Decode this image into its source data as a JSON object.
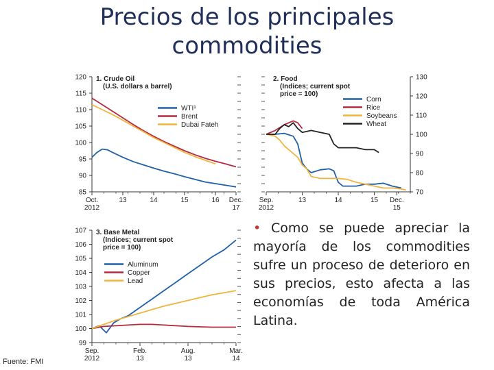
{
  "slide": {
    "title_line1": "Precios de los principales",
    "title_line2": "commodities",
    "bullet_symbol": "•",
    "bullet_text": "Como se puede apreciar la mayoría de los commodities sufre un proceso de deterioro en sus precios, esto afecta a las economías de toda América Latina.",
    "source": "Fuente: FMI"
  },
  "chart_data": [
    {
      "type": "line",
      "title": "1. Crude Oil",
      "subtitle": "(U.S. dollars a barrel)",
      "ylim": [
        85,
        120
      ],
      "yticks": [
        85,
        90,
        95,
        100,
        105,
        110,
        115,
        120
      ],
      "xlim": [
        0,
        14
      ],
      "xticks": [
        {
          "x": 0,
          "label1": "Oct.",
          "label2": "2012"
        },
        {
          "x": 3,
          "label1": "13",
          "label2": ""
        },
        {
          "x": 6,
          "label1": "14",
          "label2": ""
        },
        {
          "x": 9,
          "label1": "15",
          "label2": ""
        },
        {
          "x": 12,
          "label1": "16",
          "label2": ""
        },
        {
          "x": 14,
          "label1": "Dec.",
          "label2": "17"
        }
      ],
      "legend_position": "top-right",
      "series": [
        {
          "name": "WTI¹",
          "color": "#1f5fa8",
          "x": [
            0,
            0.5,
            1,
            1.5,
            2,
            3,
            4,
            5,
            6,
            7,
            8,
            9,
            10,
            11,
            12,
            13,
            14
          ],
          "y": [
            95.5,
            97,
            98,
            97.8,
            97,
            95.5,
            94.2,
            93.2,
            92.2,
            91.3,
            90.5,
            89.6,
            88.8,
            88,
            87.5,
            87,
            86.5
          ]
        },
        {
          "name": "Brent",
          "color": "#b5283e",
          "x": [
            0,
            1,
            2,
            3,
            4,
            5,
            6,
            7,
            8,
            9,
            10,
            11,
            12,
            13,
            14
          ],
          "y": [
            113.5,
            111.5,
            109.5,
            107.5,
            105.5,
            103.6,
            101.9,
            100.3,
            98.9,
            97.5,
            96.3,
            95.2,
            94.3,
            93.5,
            92.6
          ]
        },
        {
          "name": "Dubai Fateh",
          "color": "#f0b43c",
          "x": [
            0,
            1,
            2,
            3,
            4,
            5,
            6,
            7,
            8,
            9,
            10,
            11,
            12
          ],
          "y": [
            111.5,
            110,
            108.5,
            106.8,
            105,
            103.3,
            101.5,
            100,
            98.5,
            97,
            95.7,
            94.6,
            93.5
          ]
        }
      ]
    },
    {
      "type": "line",
      "title": "2. Food",
      "subtitle": "(Indices; current spot price = 100)",
      "ylim": [
        70,
        130
      ],
      "yticks": [
        70,
        80,
        90,
        100,
        110,
        120,
        130
      ],
      "xlim": [
        0,
        16
      ],
      "xticks": [
        {
          "x": 0,
          "label1": "Sep.",
          "label2": "2012"
        },
        {
          "x": 4,
          "label1": "13",
          "label2": ""
        },
        {
          "x": 8,
          "label1": "14",
          "label2": ""
        },
        {
          "x": 12,
          "label1": "15",
          "label2": ""
        },
        {
          "x": 14.5,
          "label1": "Dec.",
          "label2": "15"
        }
      ],
      "legend_position": "top-right",
      "series": [
        {
          "name": "Corn",
          "color": "#1f5fa8",
          "x": [
            0,
            1,
            2,
            3,
            3.5,
            4,
            4.5,
            5,
            6,
            7,
            7.5,
            8,
            8.5,
            9,
            10,
            11,
            12,
            13,
            14,
            15
          ],
          "y": [
            100,
            100,
            100.5,
            99,
            95,
            85,
            82,
            80,
            81.5,
            82,
            81,
            75,
            73,
            73,
            73,
            74,
            74,
            74.5,
            73,
            72
          ]
        },
        {
          "name": "Rice",
          "color": "#b5283e",
          "x": [
            0,
            1,
            2,
            3,
            3.5,
            4
          ],
          "y": [
            100,
            102,
            105,
            107,
            106,
            103
          ]
        },
        {
          "name": "Soybeans",
          "color": "#f0b43c",
          "x": [
            0,
            1,
            1.5,
            2,
            3,
            3.5,
            4,
            4.5,
            5,
            6,
            7,
            8,
            9,
            10,
            11,
            12,
            13,
            14,
            15,
            15.5
          ],
          "y": [
            100,
            99,
            97,
            94,
            90,
            88,
            84,
            82,
            78,
            77,
            77,
            77,
            76.5,
            75,
            74,
            73,
            72,
            72,
            71.5,
            71
          ]
        },
        {
          "name": "Wheat",
          "color": "#222222",
          "x": [
            0,
            1,
            1.5,
            2,
            2.5,
            3,
            3.5,
            4,
            5,
            6,
            7,
            7.5,
            8,
            9,
            10,
            11,
            12,
            12.5
          ],
          "y": [
            100,
            100,
            103,
            105,
            104,
            106,
            103,
            101,
            102,
            101,
            100,
            95,
            93,
            93,
            93,
            92,
            92,
            90.5
          ]
        }
      ]
    },
    {
      "type": "line",
      "title": "3. Base Metal",
      "subtitle": "(Indices; current spot price = 100)",
      "ylim": [
        99,
        107
      ],
      "yticks": [
        99,
        100,
        101,
        102,
        103,
        104,
        105,
        106,
        107
      ],
      "xlim": [
        0,
        6
      ],
      "xticks": [
        {
          "x": 0,
          "label1": "Sep.",
          "label2": "2012"
        },
        {
          "x": 2,
          "label1": "Feb.",
          "label2": "13"
        },
        {
          "x": 4,
          "label1": "Aug.",
          "label2": "13"
        },
        {
          "x": 6,
          "label1": "Mar.",
          "label2": "14"
        }
      ],
      "legend_position": "top-left",
      "series": [
        {
          "name": "Aluminum",
          "color": "#1f5fa8",
          "x": [
            0,
            0.3,
            0.6,
            0.9,
            1.2,
            1.5,
            2,
            2.5,
            3,
            3.5,
            4,
            4.5,
            5,
            5.5,
            6
          ],
          "y": [
            100,
            100.2,
            99.7,
            100.4,
            100.7,
            100.9,
            101.5,
            102.1,
            102.7,
            103.3,
            103.9,
            104.5,
            105.1,
            105.6,
            106.3
          ]
        },
        {
          "name": "Copper",
          "color": "#b5283e",
          "x": [
            0,
            0.5,
            1,
            1.5,
            2,
            2.5,
            3,
            3.5,
            4,
            4.5,
            5,
            5.5,
            6
          ],
          "y": [
            100,
            100.15,
            100.2,
            100.25,
            100.3,
            100.3,
            100.25,
            100.2,
            100.15,
            100.12,
            100.1,
            100.1,
            100.1
          ]
        },
        {
          "name": "Lead",
          "color": "#f0b43c",
          "x": [
            0,
            0.5,
            1,
            1.5,
            2,
            2.5,
            3,
            3.5,
            4,
            4.5,
            5,
            5.5,
            6
          ],
          "y": [
            100,
            100.3,
            100.6,
            100.85,
            101.1,
            101.35,
            101.6,
            101.8,
            102,
            102.2,
            102.4,
            102.55,
            102.7
          ]
        }
      ]
    }
  ]
}
